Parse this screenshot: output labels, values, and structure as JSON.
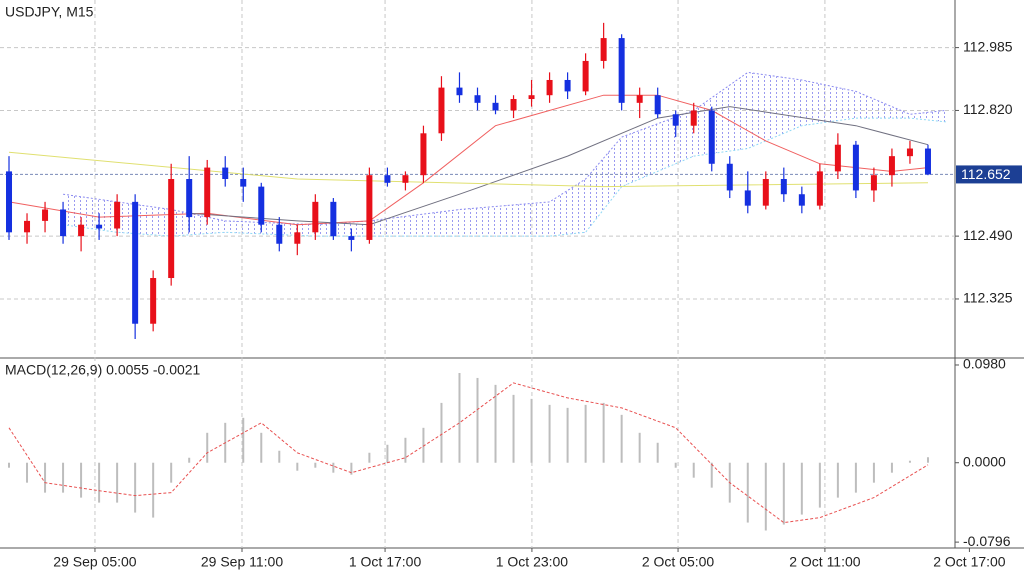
{
  "chart_data": [
    {
      "type": "candlestick",
      "title": "USDJPY, M15",
      "xlim": [
        -0.5,
        52.5
      ],
      "ylim": [
        112.17,
        113.11
      ],
      "yticks": [
        112.325,
        {
          "value": 112.49,
          "label": "112.490"
        },
        {
          "value": 112.82,
          "label": "112.820"
        },
        112.985
      ],
      "xticks": [
        {
          "value": 4.77,
          "label": "29 Sep 05:00"
        },
        {
          "value": 12.93,
          "label": "29 Sep 11:00"
        },
        {
          "value": 20.87,
          "label": "1 Oct 17:00"
        },
        {
          "value": 29.02,
          "label": "1 Oct 23:00"
        },
        {
          "value": 37.13,
          "label": "2 Oct 05:00"
        },
        {
          "value": 45.28,
          "label": "2 Oct 11:00"
        },
        {
          "value": 53.3,
          "label": "2 Oct 17:00"
        }
      ],
      "grid": true,
      "up_color": "#e8101a",
      "down_color": "#1530e0",
      "x": [
        0,
        1,
        2,
        3,
        4,
        5,
        6,
        7,
        8,
        9,
        10,
        11,
        12,
        13,
        14,
        15,
        16,
        17,
        18,
        19,
        20,
        21,
        22,
        23,
        24,
        25,
        26,
        27,
        28,
        29,
        30,
        31,
        32,
        33,
        34,
        35,
        36,
        37,
        38,
        39,
        40,
        41,
        42,
        43,
        44,
        45,
        46,
        47,
        48,
        49,
        50,
        51
      ],
      "open": [
        112.66,
        112.5,
        112.53,
        112.56,
        112.49,
        112.52,
        112.51,
        112.58,
        112.26,
        112.38,
        112.64,
        112.54,
        112.67,
        112.64,
        112.62,
        112.52,
        112.47,
        112.5,
        112.58,
        112.49,
        112.48,
        112.65,
        112.63,
        112.65,
        112.76,
        112.88,
        112.86,
        112.84,
        112.82,
        112.85,
        112.86,
        112.9,
        112.87,
        112.95,
        113.01,
        112.84,
        112.86,
        112.81,
        112.78,
        112.82,
        112.68,
        112.61,
        112.57,
        112.64,
        112.6,
        112.57,
        112.66,
        112.73,
        112.61,
        112.65,
        112.7,
        112.72
      ],
      "high": [
        112.7,
        112.55,
        112.58,
        112.58,
        112.54,
        112.55,
        112.6,
        112.6,
        112.4,
        112.68,
        112.7,
        112.69,
        112.7,
        112.67,
        112.63,
        112.54,
        112.52,
        112.6,
        112.59,
        112.51,
        112.67,
        112.67,
        112.66,
        112.78,
        112.91,
        112.92,
        112.88,
        112.86,
        112.86,
        112.9,
        112.92,
        112.92,
        112.97,
        113.05,
        113.02,
        112.88,
        112.88,
        112.82,
        112.84,
        112.83,
        112.7,
        112.66,
        112.66,
        112.67,
        112.62,
        112.68,
        112.76,
        112.74,
        112.67,
        112.72,
        112.74,
        112.73
      ],
      "low": [
        112.48,
        112.47,
        112.5,
        112.47,
        112.45,
        112.48,
        112.49,
        112.22,
        112.24,
        112.36,
        112.5,
        112.52,
        112.62,
        112.58,
        112.5,
        112.45,
        112.44,
        112.48,
        112.48,
        112.45,
        112.47,
        112.62,
        112.61,
        112.63,
        112.74,
        112.84,
        112.82,
        112.81,
        112.8,
        112.83,
        112.84,
        112.85,
        112.86,
        112.93,
        112.82,
        112.8,
        112.8,
        112.75,
        112.76,
        112.66,
        112.59,
        112.55,
        112.56,
        112.58,
        112.55,
        112.56,
        112.64,
        112.59,
        112.58,
        112.62,
        112.68,
        112.65
      ],
      "close": [
        112.5,
        112.53,
        112.56,
        112.49,
        112.52,
        112.51,
        112.58,
        112.26,
        112.38,
        112.64,
        112.54,
        112.67,
        112.64,
        112.62,
        112.52,
        112.47,
        112.5,
        112.58,
        112.49,
        112.48,
        112.65,
        112.63,
        112.65,
        112.76,
        112.88,
        112.86,
        112.84,
        112.82,
        112.85,
        112.86,
        112.9,
        112.87,
        112.95,
        113.01,
        112.84,
        112.86,
        112.81,
        112.78,
        112.82,
        112.68,
        112.61,
        112.57,
        112.64,
        112.6,
        112.57,
        112.66,
        112.73,
        112.61,
        112.65,
        112.7,
        112.72,
        112.652
      ],
      "lines": [
        {
          "color": "#f06060",
          "x": [
            0,
            5,
            11,
            16,
            20,
            23,
            27,
            33,
            36,
            39,
            42,
            45,
            49,
            51
          ],
          "values": [
            112.58,
            112.54,
            112.55,
            112.52,
            112.53,
            112.63,
            112.78,
            112.86,
            112.86,
            112.82,
            112.74,
            112.68,
            112.66,
            112.67
          ]
        },
        {
          "color": "#707080",
          "x": [
            10,
            16,
            20,
            25,
            31,
            36,
            40,
            47,
            51
          ],
          "values": [
            112.55,
            112.53,
            112.52,
            112.6,
            112.7,
            112.8,
            112.83,
            112.78,
            112.73
          ]
        },
        {
          "color": "#e0e070",
          "x": [
            0,
            16,
            33,
            51
          ],
          "values": [
            112.71,
            112.64,
            112.62,
            112.63
          ]
        }
      ],
      "cloud": {
        "upper_color": "#8a8af0",
        "lower_color": "#8fd8f5",
        "x": [
          3,
          6,
          9,
          12,
          17,
          20,
          25,
          30,
          32,
          34,
          38,
          41,
          44,
          47,
          50,
          52
        ],
        "upper": [
          112.6,
          112.58,
          112.56,
          112.53,
          112.52,
          112.53,
          112.56,
          112.58,
          112.64,
          112.75,
          112.82,
          112.92,
          112.9,
          112.87,
          112.81,
          112.82
        ],
        "lower": [
          112.52,
          112.5,
          112.49,
          112.5,
          112.49,
          112.49,
          112.49,
          112.49,
          112.5,
          112.62,
          112.7,
          112.72,
          112.78,
          112.8,
          112.8,
          112.79
        ]
      },
      "current_price": 112.652,
      "current_price_color": "#1c3f94"
    },
    {
      "type": "macd",
      "title": "MACD(12,26,9) 0.0055 -0.0021",
      "xlim": [
        -0.5,
        52.5
      ],
      "ylim": [
        -0.0855,
        0.105
      ],
      "yticks": [
        {
          "value": 0.098,
          "label": "0.0980"
        },
        {
          "value": 0,
          "label": "0.0000"
        },
        -0.0796
      ],
      "histogram_color": "#bdbdbd",
      "signal_color": "#e85050",
      "x": [
        0,
        1,
        2,
        3,
        4,
        5,
        6,
        7,
        8,
        9,
        10,
        11,
        12,
        13,
        14,
        15,
        16,
        17,
        18,
        19,
        20,
        21,
        22,
        23,
        24,
        25,
        26,
        27,
        28,
        29,
        30,
        31,
        32,
        33,
        34,
        35,
        36,
        37,
        38,
        39,
        40,
        41,
        42,
        43,
        44,
        45,
        46,
        47,
        48,
        49,
        50,
        51
      ],
      "values": [
        -0.005,
        -0.02,
        -0.03,
        -0.03,
        -0.035,
        -0.04,
        -0.04,
        -0.05,
        -0.055,
        -0.02,
        0.005,
        0.03,
        0.04,
        0.045,
        0.03,
        0.012,
        -0.008,
        -0.005,
        -0.01,
        -0.012,
        0.01,
        0.018,
        0.025,
        0.035,
        0.06,
        0.09,
        0.085,
        0.078,
        0.068,
        0.064,
        0.058,
        0.055,
        0.058,
        0.06,
        0.048,
        0.03,
        0.02,
        -0.005,
        -0.015,
        -0.025,
        -0.04,
        -0.06,
        -0.068,
        -0.062,
        -0.052,
        -0.045,
        -0.035,
        -0.03,
        -0.02,
        -0.01,
        0.002,
        0.0055
      ],
      "signal": {
        "x": [
          0,
          2,
          5,
          7,
          9,
          11,
          14,
          16,
          19,
          22,
          25,
          28,
          31,
          34,
          37,
          40,
          43,
          45,
          48,
          51
        ],
        "values": [
          0.035,
          -0.02,
          -0.028,
          -0.033,
          -0.03,
          0.01,
          0.04,
          0.01,
          -0.01,
          0.005,
          0.04,
          0.08,
          0.065,
          0.055,
          0.035,
          -0.02,
          -0.06,
          -0.055,
          -0.035,
          -0.0021
        ]
      }
    }
  ]
}
